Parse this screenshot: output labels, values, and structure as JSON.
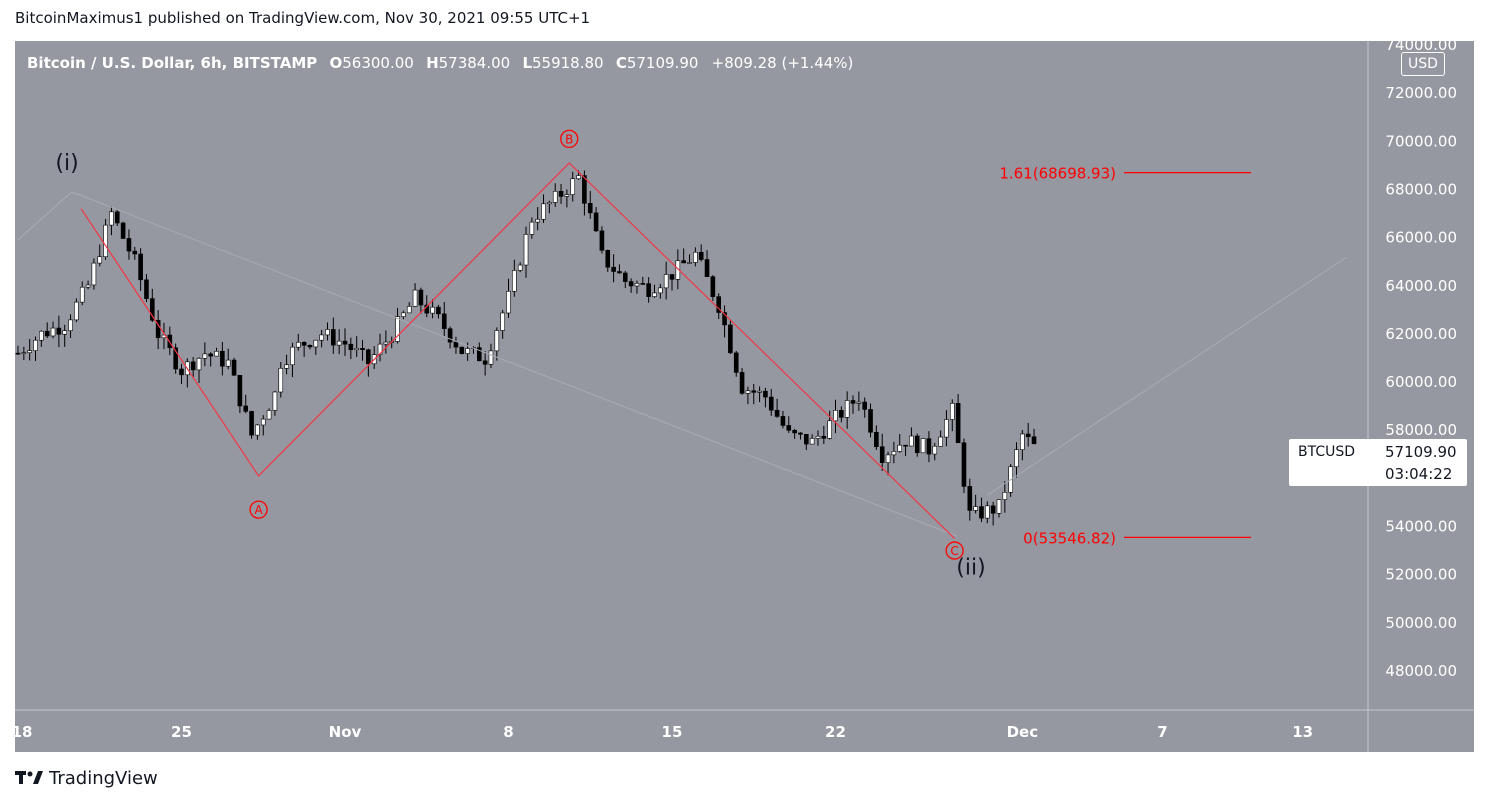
{
  "attribution": "BitcoinMaximus1 published on TradingView.com, Nov 30, 2021 09:55 UTC+1",
  "header": {
    "title": "Bitcoin / U.S. Dollar, 6h, BITSTAMP",
    "o_label": "O",
    "o_value": "56300.00",
    "h_label": "H",
    "h_value": "57384.00",
    "l_label": "L",
    "l_value": "55918.80",
    "c_label": "C",
    "c_value": "57109.90",
    "change": "+809.28 (+1.44%)"
  },
  "currency_badge": "USD",
  "price_label": {
    "symbol": "BTCUSD",
    "value": "57109.90",
    "countdown": "03:04:22"
  },
  "footer_brand": "TradingView",
  "colors": {
    "background": "#9598a1",
    "axis_text": "#ffffff",
    "annotation_red": "#ff0000",
    "candle_up": "#ffffff",
    "candle_down": "#000000",
    "faint_channel": "#a8abb3"
  },
  "chart_data": {
    "type": "candlestick",
    "symbol": "BTCUSD",
    "timeframe": "6h",
    "ylim": [
      46000,
      74000
    ],
    "y_ticks": [
      "74000.00",
      "72000.00",
      "70000.00",
      "68000.00",
      "66000.00",
      "64000.00",
      "62000.00",
      "60000.00",
      "58000.00",
      "56000.00",
      "54000.00",
      "52000.00",
      "50000.00",
      "48000.00"
    ],
    "x_tick_labels": [
      {
        "label": "18",
        "day": 0
      },
      {
        "label": "25",
        "day": 7
      },
      {
        "label": "Nov",
        "day": 14
      },
      {
        "label": "8",
        "day": 21
      },
      {
        "label": "15",
        "day": 28
      },
      {
        "label": "22",
        "day": 35
      },
      {
        "label": "Dec",
        "day": 43
      },
      {
        "label": "7",
        "day": 49
      },
      {
        "label": "13",
        "day": 55
      }
    ],
    "close_path": [
      [
        0,
        61200
      ],
      [
        1,
        62000
      ],
      [
        2,
        62400
      ],
      [
        3,
        64000
      ],
      [
        4,
        67000
      ],
      [
        5,
        65000
      ],
      [
        6,
        62000
      ],
      [
        7,
        60500
      ],
      [
        8,
        61200
      ],
      [
        9,
        60800
      ],
      [
        10,
        57800
      ],
      [
        11,
        59500
      ],
      [
        11.2,
        60800
      ],
      [
        12,
        61500
      ],
      [
        13,
        62000
      ],
      [
        14,
        61600
      ],
      [
        15,
        60800
      ],
      [
        16,
        62000
      ],
      [
        17,
        63500
      ],
      [
        18,
        62600
      ],
      [
        19,
        61300
      ],
      [
        20,
        61000
      ],
      [
        21,
        63500
      ],
      [
        22,
        66800
      ],
      [
        23,
        67600
      ],
      [
        24,
        68500
      ],
      [
        25,
        65200
      ],
      [
        26,
        64200
      ],
      [
        27,
        63900
      ],
      [
        28,
        64500
      ],
      [
        29,
        65300
      ],
      [
        30,
        63200
      ],
      [
        31,
        59800
      ],
      [
        32,
        59400
      ],
      [
        33,
        57800
      ],
      [
        34,
        57500
      ],
      [
        35,
        58500
      ],
      [
        36,
        59400
      ],
      [
        37,
        57000
      ],
      [
        38,
        57600
      ],
      [
        39,
        57200
      ],
      [
        40,
        58800
      ],
      [
        40.8,
        54200
      ],
      [
        41,
        54500
      ],
      [
        42,
        54800
      ],
      [
        43,
        57800
      ],
      [
        43.7,
        57109.9
      ]
    ],
    "wave_labels": [
      {
        "label": "(i)",
        "day": 2.1,
        "price": 69100,
        "color": "black"
      },
      {
        "label": "(ii)",
        "day": 40.8,
        "price": 52300,
        "color": "black"
      },
      {
        "label": "A",
        "day": 10.3,
        "price": 54700,
        "color": "red"
      },
      {
        "label": "B",
        "day": 23.6,
        "price": 70100,
        "color": "red"
      },
      {
        "label": "C",
        "day": 40.1,
        "price": 53000,
        "color": "red"
      }
    ],
    "abc_path": [
      [
        2.7,
        67200
      ],
      [
        10.3,
        56100
      ],
      [
        23.6,
        69100
      ],
      [
        40.1,
        53500
      ]
    ],
    "channel_lines": [
      [
        [
          0,
          65900
        ],
        [
          2.3,
          67900
        ],
        [
          40.2,
          53600
        ]
      ],
      [
        [
          41.5,
          55300
        ],
        [
          56.9,
          65200
        ]
      ]
    ],
    "fib_levels": [
      {
        "label": "1.61(68698.93)",
        "price": 68698.93,
        "day_from": 47.1,
        "day_to": 52.3
      },
      {
        "label": "0(53546.82)",
        "price": 53546.82,
        "day_from": 47.1,
        "day_to": 52.3
      }
    ]
  }
}
